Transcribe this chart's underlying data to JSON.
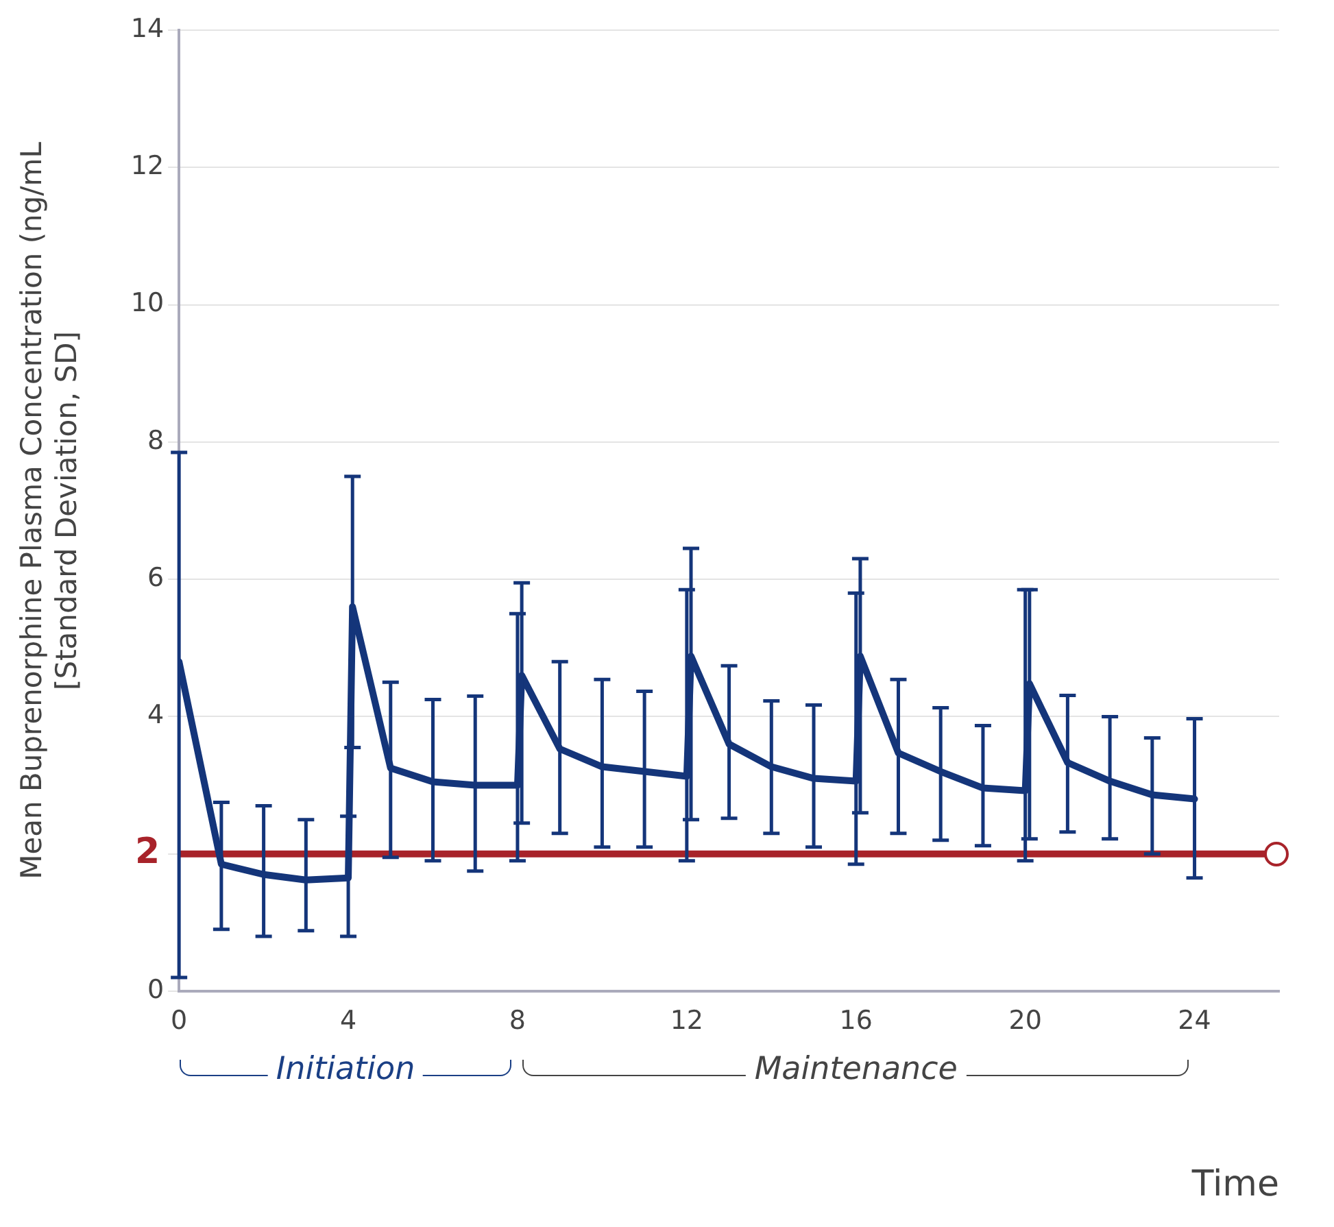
{
  "chart_data": {
    "type": "line",
    "xlabel": "Time",
    "ylabel": "Mean Buprenorphine Plasma Concentration (ng/mL\n[Standard Deviation, SD]",
    "xlim": [
      0,
      26
    ],
    "xticks": [
      0,
      4,
      8,
      12,
      16,
      20,
      24
    ],
    "ylim": [
      0,
      14
    ],
    "yticks": [
      0,
      {
        "value": 2,
        "label": null
      },
      4,
      6,
      8,
      10,
      12,
      14
    ],
    "grid": "y",
    "legend": false,
    "marker": "none",
    "line_style": "solid",
    "series": [
      {
        "color": "#14357a",
        "x": [
          0,
          1,
          2,
          3,
          4,
          4.1,
          5,
          6,
          7,
          8,
          8.1,
          9,
          10,
          11,
          12,
          12.1,
          13,
          14,
          15,
          16,
          16.1,
          17,
          18,
          19,
          20,
          20.1,
          21,
          22,
          23,
          24
        ],
        "values": [
          4.8,
          1.85,
          1.7,
          1.62,
          1.65,
          5.6,
          3.25,
          3.05,
          3.0,
          3.0,
          4.6,
          3.53,
          3.27,
          3.2,
          3.13,
          4.88,
          3.6,
          3.27,
          3.1,
          3.06,
          4.88,
          3.47,
          3.2,
          2.96,
          2.92,
          4.48,
          3.33,
          3.06,
          2.86,
          2.8
        ],
        "errors": [
          [
            0.2,
            7.85
          ],
          [
            0.9,
            2.75
          ],
          [
            0.8,
            2.7
          ],
          [
            0.88,
            2.5
          ],
          [
            0.8,
            2.55
          ],
          [
            3.55,
            7.5
          ],
          [
            1.95,
            4.5
          ],
          [
            1.9,
            4.25
          ],
          [
            1.75,
            4.3
          ],
          [
            1.9,
            5.5
          ],
          [
            2.45,
            5.95
          ],
          [
            2.3,
            4.8
          ],
          [
            2.1,
            4.54
          ],
          [
            2.1,
            4.37
          ],
          [
            1.9,
            5.85
          ],
          [
            2.5,
            6.45
          ],
          [
            2.52,
            4.74
          ],
          [
            2.3,
            4.23
          ],
          [
            2.1,
            4.17
          ],
          [
            1.85,
            5.8
          ],
          [
            2.6,
            6.3
          ],
          [
            2.3,
            4.54
          ],
          [
            2.2,
            4.13
          ],
          [
            2.12,
            3.87
          ],
          [
            1.9,
            5.85
          ],
          [
            2.22,
            5.85
          ],
          [
            2.32,
            4.31
          ],
          [
            2.22,
            4.0
          ],
          [
            2.0,
            3.69
          ],
          [
            1.65,
            3.97
          ]
        ]
      }
    ],
    "ref_lines": [
      {
        "axis": "y",
        "value": 2,
        "label": "2",
        "color": "#a8232a"
      }
    ],
    "annotations": [
      "Initiation",
      "Maintenance"
    ]
  }
}
